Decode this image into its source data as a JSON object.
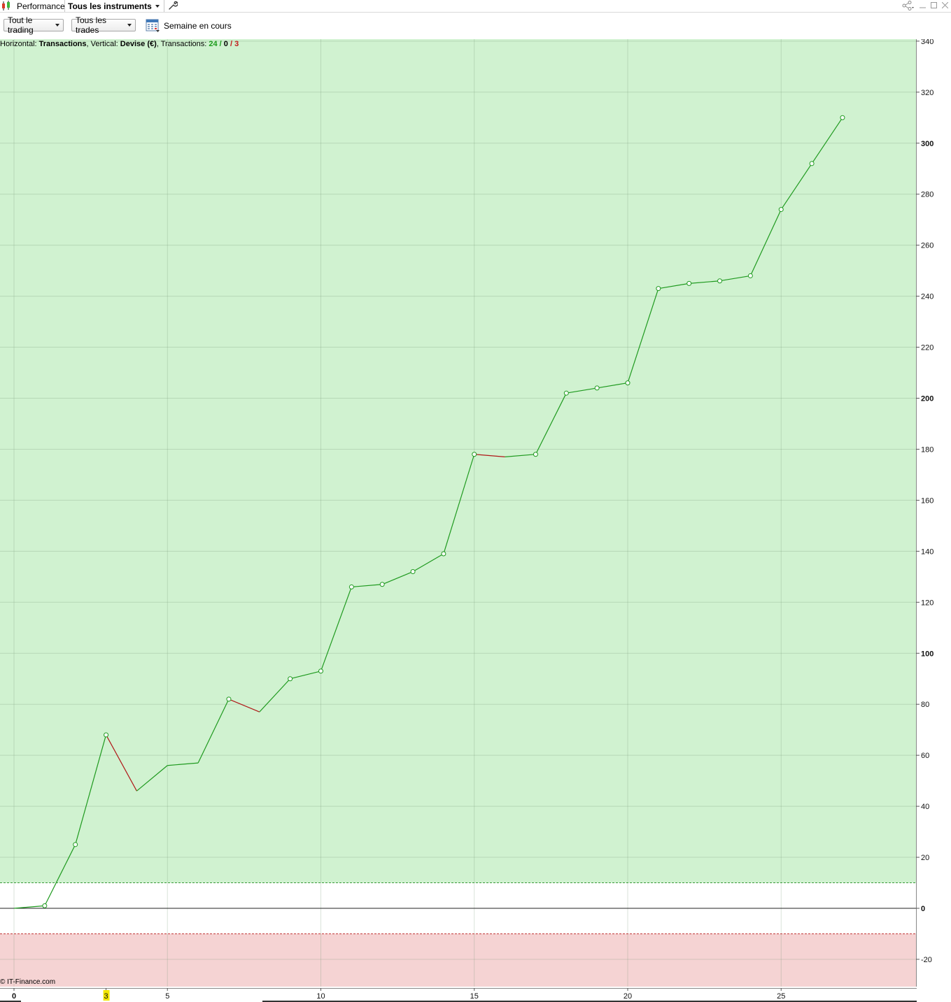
{
  "tabs": {
    "performance_label": "Performance",
    "instruments_label": "Tous les instruments"
  },
  "toolbar": {
    "trading_select": "Tout le trading",
    "trades_select": "Tous les trades",
    "period_label": "Semaine en cours"
  },
  "info": {
    "horizontal_prefix": "Horizontal: ",
    "horizontal_value": "Transactions",
    "vertical_prefix": ", Vertical: ",
    "vertical_value": "Devise (€)",
    "transactions_prefix": ", Transactions: ",
    "wins": "24",
    "sep1": " / ",
    "neutral": "0",
    "sep2": " / ",
    "losses": "3"
  },
  "copyright": "© IT-Finance.com",
  "colors": {
    "profit_zone": "#d0f2d0",
    "loss_zone": "#f5d3d3",
    "up_line": "#1f9a1f",
    "down_line": "#b01818",
    "highlight_tick": "#f2e600"
  },
  "chart_data": {
    "type": "line",
    "x": [
      0,
      1,
      2,
      3,
      4,
      5,
      6,
      7,
      8,
      9,
      10,
      11,
      12,
      13,
      14,
      15,
      16,
      17,
      18,
      19,
      20,
      21,
      22,
      23,
      24,
      25,
      26,
      27
    ],
    "values": [
      0,
      1,
      25,
      68,
      46,
      56,
      57,
      82,
      77,
      90,
      93,
      126,
      127,
      132,
      139,
      178,
      177,
      178,
      202,
      204,
      206,
      243,
      245,
      246,
      248,
      274,
      292,
      310
    ],
    "markers": [
      false,
      true,
      true,
      true,
      false,
      false,
      false,
      true,
      false,
      true,
      true,
      true,
      true,
      true,
      true,
      true,
      false,
      true,
      true,
      true,
      true,
      true,
      true,
      true,
      true,
      true,
      true,
      true
    ],
    "xlabel": "Transactions",
    "ylabel": "Devise (€)",
    "xlim": [
      0,
      29.6
    ],
    "ylim": [
      -30,
      342
    ],
    "x_ticks": [
      0,
      3,
      5,
      10,
      15,
      20,
      25
    ],
    "x_tick_labels": [
      "0",
      "3",
      "5",
      "10",
      "15",
      "20",
      "25"
    ],
    "highlighted_x_tick": 3,
    "y_ticks": [
      340,
      320,
      300,
      280,
      260,
      240,
      220,
      200,
      180,
      160,
      140,
      120,
      100,
      80,
      60,
      40,
      20,
      0,
      -20
    ],
    "y_tick_labels": [
      "340",
      "320",
      "300",
      "280",
      "260",
      "240",
      "220",
      "200",
      "180",
      "160",
      "140",
      "120",
      "100",
      "80",
      "60",
      "40",
      "20",
      "0",
      "-20"
    ],
    "bold_y_ticks": [
      300,
      200,
      100,
      0
    ],
    "profit_threshold": 10,
    "loss_threshold": -10,
    "grid": true
  }
}
